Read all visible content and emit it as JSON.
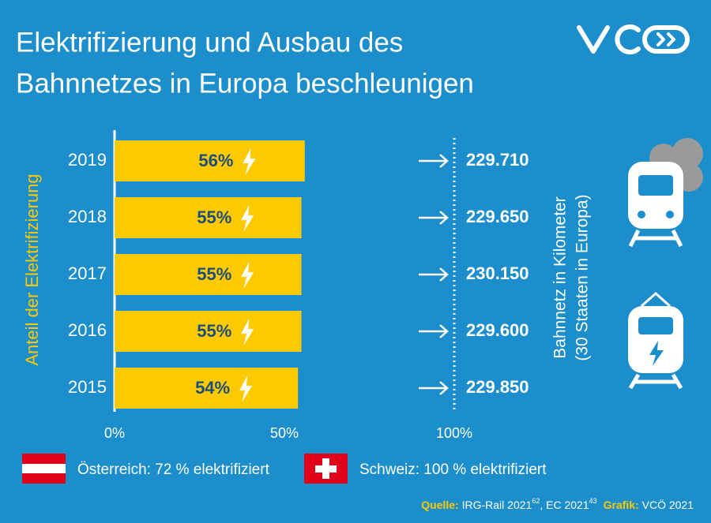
{
  "chart_data": {
    "type": "bar",
    "orientation": "horizontal",
    "title": [
      "Elektrifizierung und Ausbau des",
      "Bahnnetzes in Europa beschleunigen"
    ],
    "y_axis_label": "Anteil der Elektrifizierung",
    "right_axis_label": [
      "Bahnnetz in Kilometer",
      "(30 Staaten in Europa)"
    ],
    "categories": [
      "2019",
      "2018",
      "2017",
      "2016",
      "2015"
    ],
    "values": [
      56,
      55,
      55,
      55,
      54
    ],
    "value_labels": [
      "56%",
      "55%",
      "55%",
      "55%",
      "54%"
    ],
    "color": "#fdc900",
    "xlim": [
      0,
      100
    ],
    "xticks": [
      {
        "value": 0,
        "label": "0%"
      },
      {
        "value": 50,
        "label": "50%"
      },
      {
        "value": 100,
        "label": "100%"
      }
    ],
    "network_km": {
      "values": [
        229710,
        229650,
        230150,
        229600,
        229850
      ],
      "labels": [
        "229.710",
        "229.650",
        "230.150",
        "229.600",
        "229.850"
      ]
    },
    "notes": [
      "Österreich: 72 % elektrifiziert",
      "Schweiz: 100 % elektrifiziert"
    ],
    "source": {
      "label": "Quelle:",
      "parts": [
        "IRG-Rail 2021",
        "62",
        ", EC 2021",
        "43"
      ],
      "credit_label": "Grafik:",
      "credit": "VCÖ 2021"
    }
  }
}
